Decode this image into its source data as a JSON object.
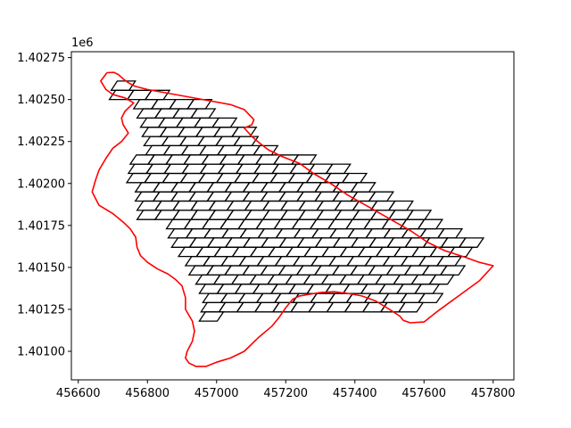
{
  "chart_data": {
    "type": "line",
    "title": "",
    "xlabel": "",
    "ylabel": "",
    "y_offset_label": "1e6",
    "xlim": [
      456580,
      457860
    ],
    "ylim": [
      1400830,
      1402785
    ],
    "y_scale": 1000000,
    "grid": false,
    "xticks": [
      456600,
      456800,
      457000,
      457200,
      457400,
      457600,
      457800
    ],
    "xtick_labels": [
      "456600",
      "456800",
      "457000",
      "457200",
      "457400",
      "457600",
      "457800"
    ],
    "yticks": [
      1401000,
      1401250,
      1401500,
      1401750,
      1402000,
      1402250,
      1402500,
      1402750
    ],
    "ytick_labels": [
      "1.40100",
      "1.40125",
      "1.40150",
      "1.40175",
      "1.40200",
      "1.40225",
      "1.40250",
      "1.40275"
    ],
    "colors": {
      "boundary": "#ff0000",
      "grid": "#000000",
      "axes": "#000000"
    },
    "series": [
      {
        "role": "boundary",
        "x": [
          456683,
          456703,
          456715,
          456732,
          456745,
          456763,
          456800,
          456880,
          456960,
          457040,
          457080,
          457108,
          457102,
          457080,
          457102,
          457125,
          457150,
          457190,
          457240,
          457280,
          457330,
          457380,
          457440,
          457500,
          457560,
          457610,
          457660,
          457720,
          457760,
          457800,
          457760,
          457700,
          457640,
          457600,
          457560,
          457540,
          457530,
          457500,
          457460,
          457420,
          457380,
          457340,
          457300,
          457270,
          457240,
          457220,
          457200,
          457180,
          457160,
          457120,
          457080,
          457040,
          457000,
          456970,
          456940,
          456920,
          456910,
          456915,
          456930,
          456936,
          456930,
          456910,
          456910,
          456900,
          456880,
          456860,
          456830,
          456800,
          456780,
          456770,
          456766,
          456750,
          456730,
          456700,
          456660,
          456640,
          456650,
          456660,
          456680,
          456700,
          456725,
          456745,
          456730,
          456725,
          456735,
          456760,
          456735,
          456700,
          456680,
          456665,
          456683
        ],
        "y": [
          1402660,
          1402662,
          1402650,
          1402620,
          1402600,
          1402580,
          1402560,
          1402530,
          1402500,
          1402470,
          1402440,
          1402380,
          1402350,
          1402330,
          1402280,
          1402240,
          1402200,
          1402160,
          1402120,
          1402060,
          1402000,
          1401930,
          1401860,
          1401790,
          1401720,
          1401650,
          1401600,
          1401560,
          1401530,
          1401510,
          1401420,
          1401330,
          1401240,
          1401175,
          1401170,
          1401185,
          1401210,
          1401250,
          1401300,
          1401330,
          1401345,
          1401355,
          1401350,
          1401340,
          1401330,
          1401310,
          1401260,
          1401200,
          1401150,
          1401080,
          1401000,
          1400960,
          1400935,
          1400910,
          1400910,
          1400930,
          1400960,
          1401000,
          1401060,
          1401120,
          1401180,
          1401250,
          1401320,
          1401390,
          1401430,
          1401460,
          1401490,
          1401530,
          1401570,
          1401620,
          1401680,
          1401730,
          1401770,
          1401820,
          1401870,
          1401950,
          1402020,
          1402080,
          1402150,
          1402210,
          1402250,
          1402300,
          1402350,
          1402390,
          1402430,
          1402480,
          1402510,
          1402530,
          1402560,
          1402610,
          1402660
        ]
      },
      {
        "role": "grid-cells",
        "row_start_x": [
          456695,
          456690,
          456760,
          456770,
          456780,
          456785,
          456790,
          456795,
          456750,
          456745,
          456740,
          456765,
          456765,
          456770,
          456770,
          456855,
          456860,
          456870,
          456890,
          456910,
          456920,
          456940,
          456950,
          456960,
          456955,
          456950
        ],
        "row_end_x": [
          456750,
          456870,
          457000,
          457020,
          457060,
          457100,
          457140,
          457200,
          457320,
          457400,
          457440,
          457480,
          457520,
          457560,
          457620,
          457680,
          457740,
          457770,
          457760,
          457740,
          457700,
          457680,
          457660,
          457640,
          457620,
          457040
        ],
        "y_top": 1402610,
        "row_step": 55,
        "cell_width": 52,
        "cell_shear": 18
      }
    ]
  }
}
